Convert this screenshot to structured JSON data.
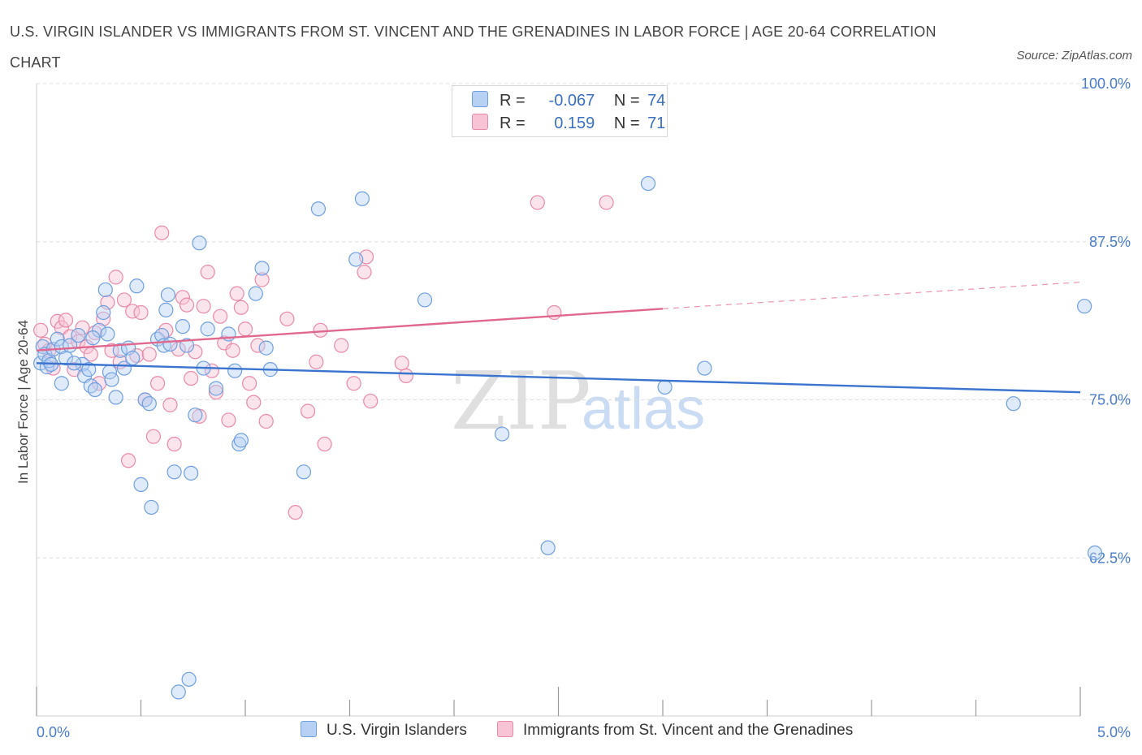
{
  "title": "U.S. VIRGIN ISLANDER VS IMMIGRANTS FROM ST. VINCENT AND THE GRENADINES IN LABOR FORCE | AGE 20-64 CORRELATION CHART",
  "source": "Source: ZipAtlas.com",
  "watermark": {
    "zip": "ZIP",
    "atlas": "atlas"
  },
  "colors": {
    "blue_fill": "#b7d1f4",
    "blue_stroke": "#6f9fde",
    "blue_line": "#3a74cf",
    "pink_fill": "#f8c3d4",
    "pink_stroke": "#e88aa8",
    "pink_line": "#e0688f",
    "tick": "#4a7cc9",
    "grid": "#dddddd"
  },
  "legend": {
    "rows": [
      {
        "r_label": "R =",
        "r_value": "-0.067",
        "n_label": "N =",
        "n_value": "74"
      },
      {
        "r_label": "R =",
        "r_value": "0.159",
        "n_label": "N =",
        "n_value": "71"
      }
    ]
  },
  "chart_data": {
    "type": "scatter",
    "title": "U.S. VIRGIN ISLANDER VS IMMIGRANTS FROM ST. VINCENT AND THE GRENADINES IN LABOR FORCE | AGE 20-64 CORRELATION CHART",
    "xlabel": "",
    "ylabel": "In Labor Force | Age 20-64",
    "xlim": [
      0,
      5
    ],
    "ylim": [
      50,
      100
    ],
    "x_tick_labels": [
      "0.0%",
      "5.0%"
    ],
    "y_ticks": [
      62.5,
      75.0,
      87.5,
      100.0
    ],
    "y_tick_labels": [
      "62.5%",
      "75.0%",
      "87.5%",
      "100.0%"
    ],
    "grid": "horizontal dashed",
    "legend_position": "bottom",
    "series": [
      {
        "name": "U.S. Virgin Islanders",
        "r": -0.067,
        "n": 74,
        "trend": {
          "x": [
            0,
            5
          ],
          "y": [
            77.9,
            75.6
          ]
        },
        "points": [
          [
            0.02,
            77.9
          ],
          [
            0.03,
            79.2
          ],
          [
            0.04,
            78.6
          ],
          [
            0.05,
            77.6
          ],
          [
            0.06,
            78.1
          ],
          [
            0.08,
            79.0
          ],
          [
            0.1,
            79.8
          ],
          [
            0.12,
            79.2
          ],
          [
            0.12,
            76.3
          ],
          [
            0.14,
            78.3
          ],
          [
            0.16,
            79.3
          ],
          [
            0.2,
            80.1
          ],
          [
            0.22,
            77.8
          ],
          [
            0.23,
            76.9
          ],
          [
            0.25,
            77.4
          ],
          [
            0.26,
            76.1
          ],
          [
            0.28,
            75.8
          ],
          [
            0.3,
            80.5
          ],
          [
            0.32,
            81.9
          ],
          [
            0.33,
            83.7
          ],
          [
            0.34,
            80.2
          ],
          [
            0.35,
            77.2
          ],
          [
            0.36,
            76.6
          ],
          [
            0.38,
            75.2
          ],
          [
            0.4,
            78.9
          ],
          [
            0.42,
            77.5
          ],
          [
            0.44,
            79.1
          ],
          [
            0.46,
            78.3
          ],
          [
            0.48,
            84.0
          ],
          [
            0.5,
            68.3
          ],
          [
            0.52,
            75.0
          ],
          [
            0.54,
            74.7
          ],
          [
            0.55,
            66.5
          ],
          [
            0.58,
            79.8
          ],
          [
            0.6,
            80.1
          ],
          [
            0.61,
            79.3
          ],
          [
            0.62,
            82.1
          ],
          [
            0.63,
            83.3
          ],
          [
            0.64,
            79.4
          ],
          [
            0.66,
            69.3
          ],
          [
            0.68,
            51.9
          ],
          [
            0.7,
            80.8
          ],
          [
            0.72,
            79.3
          ],
          [
            0.73,
            52.9
          ],
          [
            0.74,
            69.2
          ],
          [
            0.76,
            73.8
          ],
          [
            0.78,
            87.4
          ],
          [
            0.8,
            77.5
          ],
          [
            0.82,
            80.6
          ],
          [
            0.86,
            75.9
          ],
          [
            0.92,
            80.2
          ],
          [
            0.95,
            77.3
          ],
          [
            0.97,
            71.5
          ],
          [
            0.98,
            71.8
          ],
          [
            1.05,
            83.4
          ],
          [
            1.08,
            85.4
          ],
          [
            1.1,
            79.1
          ],
          [
            1.12,
            77.4
          ],
          [
            1.28,
            69.3
          ],
          [
            1.35,
            90.1
          ],
          [
            1.53,
            86.1
          ],
          [
            1.56,
            90.9
          ],
          [
            1.86,
            82.9
          ],
          [
            2.23,
            72.3
          ],
          [
            2.45,
            63.3
          ],
          [
            2.93,
            92.1
          ],
          [
            3.01,
            76.0
          ],
          [
            3.2,
            77.5
          ],
          [
            4.68,
            74.7
          ],
          [
            5.02,
            82.4
          ],
          [
            5.07,
            62.9
          ],
          [
            0.07,
            77.8
          ],
          [
            0.18,
            77.9
          ],
          [
            0.27,
            79.9
          ]
        ]
      },
      {
        "name": "Immigrants from St. Vincent and the Grenadines",
        "r": 0.159,
        "n": 71,
        "trend": {
          "x": [
            0,
            3
          ],
          "y": [
            78.9,
            82.2
          ]
        },
        "trend_dashed": {
          "x": [
            3,
            5
          ],
          "y": [
            82.2,
            84.3
          ]
        },
        "points": [
          [
            0.02,
            80.5
          ],
          [
            0.04,
            79.4
          ],
          [
            0.06,
            78.9
          ],
          [
            0.08,
            77.5
          ],
          [
            0.1,
            81.2
          ],
          [
            0.12,
            80.7
          ],
          [
            0.14,
            81.3
          ],
          [
            0.16,
            80.0
          ],
          [
            0.18,
            77.4
          ],
          [
            0.2,
            79.6
          ],
          [
            0.22,
            80.7
          ],
          [
            0.24,
            79.2
          ],
          [
            0.26,
            78.6
          ],
          [
            0.28,
            80.3
          ],
          [
            0.3,
            76.3
          ],
          [
            0.32,
            81.4
          ],
          [
            0.34,
            82.7
          ],
          [
            0.36,
            78.9
          ],
          [
            0.38,
            84.7
          ],
          [
            0.4,
            78.0
          ],
          [
            0.42,
            82.9
          ],
          [
            0.44,
            70.2
          ],
          [
            0.46,
            82.0
          ],
          [
            0.48,
            78.5
          ],
          [
            0.5,
            81.9
          ],
          [
            0.52,
            75.0
          ],
          [
            0.54,
            78.6
          ],
          [
            0.56,
            72.1
          ],
          [
            0.58,
            76.3
          ],
          [
            0.6,
            88.2
          ],
          [
            0.62,
            80.5
          ],
          [
            0.64,
            74.6
          ],
          [
            0.66,
            71.5
          ],
          [
            0.68,
            79.0
          ],
          [
            0.7,
            83.1
          ],
          [
            0.72,
            82.5
          ],
          [
            0.74,
            76.7
          ],
          [
            0.76,
            78.8
          ],
          [
            0.78,
            73.7
          ],
          [
            0.8,
            82.4
          ],
          [
            0.82,
            85.1
          ],
          [
            0.84,
            77.3
          ],
          [
            0.86,
            75.6
          ],
          [
            0.88,
            81.6
          ],
          [
            0.9,
            79.5
          ],
          [
            0.92,
            73.4
          ],
          [
            0.94,
            78.9
          ],
          [
            0.96,
            83.4
          ],
          [
            0.98,
            82.3
          ],
          [
            1.0,
            80.6
          ],
          [
            1.02,
            76.3
          ],
          [
            1.04,
            74.8
          ],
          [
            1.06,
            79.3
          ],
          [
            1.08,
            84.5
          ],
          [
            1.1,
            73.3
          ],
          [
            1.2,
            81.4
          ],
          [
            1.24,
            66.1
          ],
          [
            1.3,
            74.1
          ],
          [
            1.34,
            78.0
          ],
          [
            1.36,
            80.5
          ],
          [
            1.38,
            71.5
          ],
          [
            1.46,
            79.3
          ],
          [
            1.52,
            76.3
          ],
          [
            1.57,
            85.1
          ],
          [
            1.58,
            86.3
          ],
          [
            1.6,
            74.9
          ],
          [
            1.75,
            77.9
          ],
          [
            1.77,
            76.9
          ],
          [
            2.4,
            90.6
          ],
          [
            2.48,
            81.9
          ],
          [
            2.73,
            90.6
          ]
        ]
      }
    ]
  }
}
